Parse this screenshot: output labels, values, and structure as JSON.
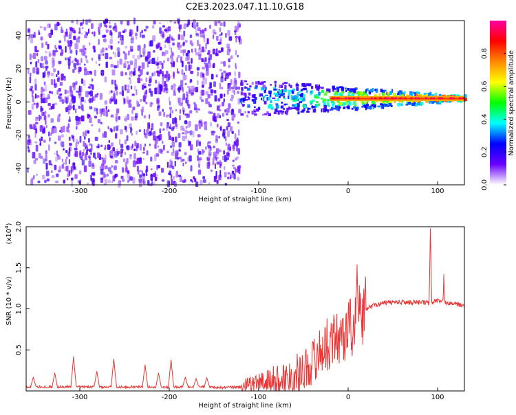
{
  "figure_title": "C2E3.2023.047.11.10.G18",
  "chart_data": [
    {
      "type": "heatmap",
      "title": "C2E3.2023.047.11.10.G18",
      "xlabel": "Height of straight line (km)",
      "ylabel": "Frequency (Hz)",
      "xlim": [
        -360,
        130
      ],
      "ylim": [
        -50,
        49
      ],
      "xticks": [
        -300,
        -200,
        -100,
        0,
        100
      ],
      "yticks": [
        -40,
        -20,
        0,
        20,
        40
      ],
      "colorbar": {
        "label": "Normalized spectral amplitude",
        "range": [
          0,
          1
        ],
        "ticks": [
          "0.0",
          "0.2",
          "0.4",
          "0.6",
          "0.8"
        ],
        "colors": [
          "#ffffff",
          "#6a00ff",
          "#0000ff",
          "#00ffff",
          "#00ff00",
          "#ffff00",
          "#ff8800",
          "#ff0000",
          "#ff00a0"
        ]
      },
      "description_regions": {
        "noise_region_x": [
          -360,
          -122
        ],
        "signal_band_center_hz": 2,
        "narrowband_x": [
          -20,
          130
        ]
      }
    },
    {
      "type": "line",
      "xlabel": "Height of straight line (km)",
      "ylabel": "SNR (10 * v/v)",
      "y_multiplier": "(x10",
      "y_exponent": "4",
      "y_multiplier_close": ")",
      "xlim": [
        -360,
        130
      ],
      "ylim": [
        0,
        2.0
      ],
      "xticks": [
        -300,
        -200,
        -100,
        0,
        100
      ],
      "yticks": [
        "0.5",
        "1.0",
        "1.5",
        "2.0"
      ],
      "color": "#ee3333",
      "series": [
        {
          "x": [
            -360,
            -340,
            -320,
            -300,
            -280,
            -260,
            -240,
            -220,
            -200,
            -180,
            -160,
            -140,
            -120,
            -110,
            -100,
            -90,
            -80,
            -70,
            -60,
            -50,
            -40,
            -30,
            -20,
            -10,
            0,
            10,
            20,
            30,
            40,
            50,
            60,
            70,
            80,
            90,
            100,
            110,
            120,
            130
          ],
          "values": [
            0.05,
            0.05,
            0.05,
            0.05,
            0.05,
            0.05,
            0.05,
            0.05,
            0.05,
            0.05,
            0.05,
            0.04,
            0.05,
            0.07,
            0.1,
            0.12,
            0.14,
            0.16,
            0.2,
            0.25,
            0.35,
            0.5,
            0.6,
            0.65,
            0.75,
            0.85,
            1.0,
            1.05,
            1.07,
            1.08,
            1.08,
            1.08,
            1.08,
            1.07,
            1.1,
            1.08,
            1.06,
            1.03
          ]
        }
      ],
      "peaks": [
        {
          "x": -352,
          "y": 0.17
        },
        {
          "x": -328,
          "y": 0.22
        },
        {
          "x": -307,
          "y": 0.42
        },
        {
          "x": -281,
          "y": 0.24
        },
        {
          "x": -262,
          "y": 0.39
        },
        {
          "x": -227,
          "y": 0.32
        },
        {
          "x": -212,
          "y": 0.22
        },
        {
          "x": -198,
          "y": 0.38
        },
        {
          "x": -182,
          "y": 0.17
        },
        {
          "x": -170,
          "y": 0.15
        },
        {
          "x": -158,
          "y": 0.16
        },
        {
          "x": 10,
          "y": 1.54
        },
        {
          "x": 92,
          "y": 1.98
        },
        {
          "x": 107,
          "y": 1.42
        }
      ]
    }
  ]
}
